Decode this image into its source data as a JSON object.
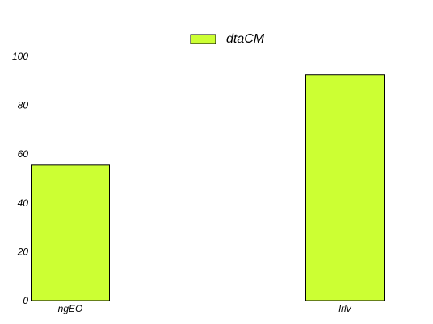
{
  "chart_data": {
    "type": "bar",
    "categories": [
      "ngEO",
      "lrlv"
    ],
    "series": [
      {
        "name": "dtaCM",
        "values": [
          55.5,
          92.5
        ]
      }
    ],
    "ylim": [
      0,
      100
    ],
    "yticks": [
      "0",
      "20",
      "40",
      "60",
      "80",
      "100"
    ],
    "grid": false,
    "legend_position": "top-center",
    "colors": {
      "bar_fill": "#ccff33",
      "bar_stroke": "#000000"
    }
  }
}
